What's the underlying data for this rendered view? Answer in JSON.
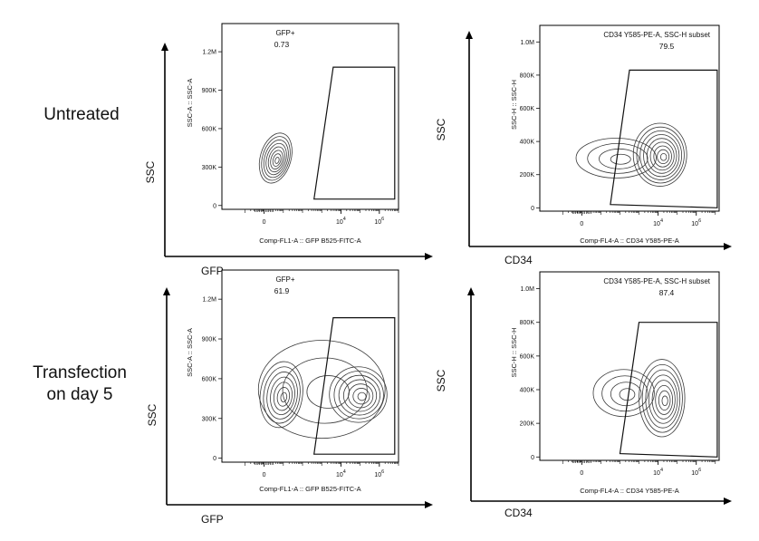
{
  "row_labels": {
    "untreated": "Untreated",
    "transfection_line1": "Transfection",
    "transfection_line2": "on day 5"
  },
  "colors": {
    "contour": "#3a3a3a",
    "frame": "#000000",
    "axis_arrow": "#000000"
  },
  "chart_data": [
    {
      "type": "contour",
      "panel": "untreated-gfp",
      "outer_xlabel": "GFP",
      "outer_ylabel": "SSC",
      "xlabel": "Comp-FL1-A :: GFP B525-FITC-A",
      "ylabel": "SSC-A :: SSC-A",
      "y_ticks": [
        "0",
        "300K",
        "600K",
        "900K",
        "1.2M"
      ],
      "y_tick_values": [
        0,
        300000,
        600000,
        900000,
        1200000
      ],
      "ylim": [
        -30000,
        1420000
      ],
      "x_ticks": [
        {
          "base": "0",
          "exp": "",
          "value": 0
        },
        {
          "base": "10",
          "exp": "4",
          "value": 4
        },
        {
          "base": "10",
          "exp": "6",
          "value": 6
        }
      ],
      "xlim": [
        -2.2,
        7.0
      ],
      "gate": {
        "name": "GFP+",
        "value": "0.73",
        "polygon": [
          [
            2.6,
            50000
          ],
          [
            3.6,
            1080000
          ],
          [
            6.8,
            1080000
          ],
          [
            6.8,
            50000
          ]
        ]
      },
      "populations": [
        {
          "x": 0.6,
          "y": 370000,
          "rx": 0.8,
          "ry": 200000,
          "tilt": 16,
          "levels": 8
        }
      ]
    },
    {
      "type": "contour",
      "panel": "untreated-cd34",
      "outer_xlabel": "CD34",
      "outer_ylabel": "SSC",
      "xlabel": "Comp-FL4-A :: CD34 Y585-PE-A",
      "ylabel": "SSC-H :: SSC-H",
      "y_ticks": [
        "0",
        "200K",
        "400K",
        "600K",
        "800K",
        "1.0M"
      ],
      "y_tick_values": [
        0,
        200000,
        400000,
        600000,
        800000,
        1000000
      ],
      "ylim": [
        -20000,
        1100000
      ],
      "x_ticks": [
        {
          "base": "0",
          "exp": "",
          "value": 0
        },
        {
          "base": "10",
          "exp": "4",
          "value": 4
        },
        {
          "base": "10",
          "exp": "6",
          "value": 6
        }
      ],
      "xlim": [
        -2.2,
        7.2
      ],
      "gate": {
        "name": "CD34 Y585-PE-A, SSC-H subset",
        "value": "79.5",
        "polygon": [
          [
            1.5,
            20000
          ],
          [
            2.5,
            830000
          ],
          [
            7.1,
            830000
          ],
          [
            7.1,
            0
          ]
        ]
      },
      "populations": [
        {
          "x": 4.1,
          "y": 320000,
          "rx": 1.4,
          "ry": 190000,
          "tilt": 0,
          "levels": 9
        },
        {
          "x": 1.8,
          "y": 300000,
          "rx": 2.1,
          "ry": 120000,
          "tilt": 0,
          "levels": 4
        }
      ]
    },
    {
      "type": "contour",
      "panel": "transfection-gfp",
      "outer_xlabel": "GFP",
      "outer_ylabel": "SSC",
      "xlabel": "Comp-FL1-A :: GFP B525-FITC-A",
      "ylabel": "SSC-A :: SSC-A",
      "y_ticks": [
        "0",
        "300K",
        "600K",
        "900K",
        "1.2M"
      ],
      "y_tick_values": [
        0,
        300000,
        600000,
        900000,
        1200000
      ],
      "ylim": [
        -30000,
        1420000
      ],
      "x_ticks": [
        {
          "base": "0",
          "exp": "",
          "value": 0
        },
        {
          "base": "10",
          "exp": "4",
          "value": 4
        },
        {
          "base": "10",
          "exp": "6",
          "value": 6
        }
      ],
      "xlim": [
        -2.2,
        7.0
      ],
      "gate": {
        "name": "GFP+",
        "value": "61.9",
        "polygon": [
          [
            2.6,
            30000
          ],
          [
            3.6,
            1060000
          ],
          [
            6.8,
            1060000
          ],
          [
            6.8,
            30000
          ]
        ]
      },
      "populations": [
        {
          "x": 0.9,
          "y": 480000,
          "rx": 1.1,
          "ry": 250000,
          "tilt": 8,
          "levels": 7
        },
        {
          "x": 4.9,
          "y": 480000,
          "rx": 1.5,
          "ry": 210000,
          "tilt": 0,
          "levels": 7
        },
        {
          "x": 3.0,
          "y": 520000,
          "rx": 3.3,
          "ry": 370000,
          "tilt": 0,
          "levels": 3
        }
      ]
    },
    {
      "type": "contour",
      "panel": "transfection-cd34",
      "outer_xlabel": "CD34",
      "outer_ylabel": "SSC",
      "xlabel": "Comp-FL4-A :: CD34 Y585-PE-A",
      "ylabel": "SSC-H :: SSC-H",
      "y_ticks": [
        "0",
        "200K",
        "400K",
        "600K",
        "800K",
        "1.0M"
      ],
      "y_tick_values": [
        0,
        200000,
        400000,
        600000,
        800000,
        1000000
      ],
      "ylim": [
        -20000,
        1100000
      ],
      "x_ticks": [
        {
          "base": "0",
          "exp": "",
          "value": 0
        },
        {
          "base": "10",
          "exp": "4",
          "value": 4
        },
        {
          "base": "10",
          "exp": "6",
          "value": 6
        }
      ],
      "xlim": [
        -2.2,
        7.2
      ],
      "gate": {
        "name": "CD34 Y585-PE-A, SSC-H subset",
        "value": "87.4",
        "polygon": [
          [
            2.0,
            20000
          ],
          [
            3.0,
            800000
          ],
          [
            7.1,
            800000
          ],
          [
            7.1,
            0
          ]
        ]
      },
      "populations": [
        {
          "x": 4.2,
          "y": 350000,
          "rx": 1.2,
          "ry": 230000,
          "tilt": 0,
          "levels": 8
        },
        {
          "x": 2.2,
          "y": 380000,
          "rx": 1.6,
          "ry": 140000,
          "tilt": 0,
          "levels": 4
        }
      ]
    }
  ]
}
